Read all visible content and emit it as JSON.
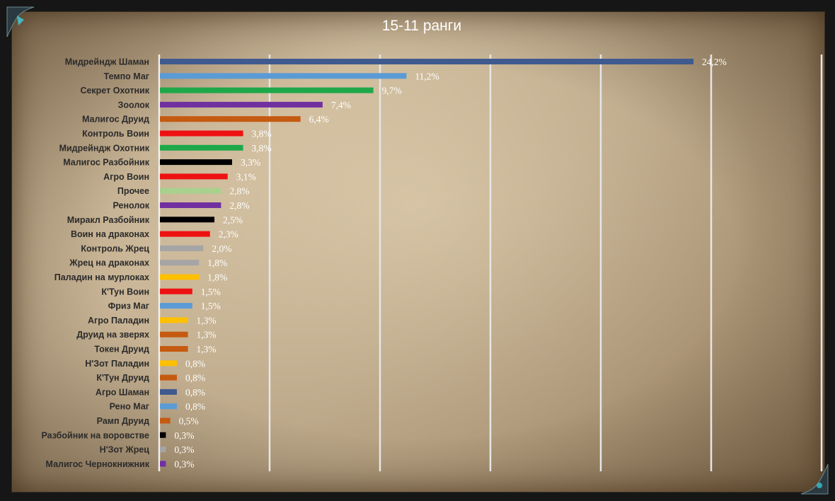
{
  "chart_data": {
    "type": "bar",
    "orientation": "horizontal",
    "title": "15-11 ранги",
    "categories": [
      "Мидрейндж Шаман",
      "Темпо Маг",
      "Секрет Охотник",
      "Зоолок",
      "Малигос Друид",
      "Контроль Воин",
      "Мидрейндж Охотник",
      "Малигос Разбойник",
      "Агро Воин",
      "Прочее",
      "Ренолок",
      "Миракл Разбойник",
      "Воин на драконах",
      "Контроль Жрец",
      "Жрец на драконах",
      "Паладин на мурлоках",
      "К'Тун Воин",
      "Фриз Маг",
      "Агро Паладин",
      "Друид на зверях",
      "Токен Друид",
      "Н'Зот Паладин",
      "К'Тун Друид",
      "Агро Шаман",
      "Рено Маг",
      "Рамп Друид",
      "Разбойник на воровстве",
      "Н'Зот Жрец",
      "Малигос Чернокнижник"
    ],
    "values": [
      24.2,
      11.2,
      9.7,
      7.4,
      6.4,
      3.8,
      3.8,
      3.3,
      3.1,
      2.8,
      2.8,
      2.5,
      2.3,
      2.0,
      1.8,
      1.8,
      1.5,
      1.5,
      1.3,
      1.3,
      1.3,
      0.8,
      0.8,
      0.8,
      0.8,
      0.5,
      0.3,
      0.3,
      0.3
    ],
    "value_labels": [
      "24,2%",
      "11,2%",
      "9,7%",
      "7,4%",
      "6,4%",
      "3,8%",
      "3,8%",
      "3,3%",
      "3,1%",
      "2,8%",
      "2,8%",
      "2,5%",
      "2,3%",
      "2,0%",
      "1,8%",
      "1,8%",
      "1,5%",
      "1,5%",
      "1,3%",
      "1,3%",
      "1,3%",
      "0,8%",
      "0,8%",
      "0,8%",
      "0,8%",
      "0,5%",
      "0,3%",
      "0,3%",
      "0,3%"
    ],
    "colors": [
      "#3f5a8f",
      "#5b9bd5",
      "#1ea84a",
      "#7030a0",
      "#c55a11",
      "#ee1111",
      "#1ea84a",
      "#000000",
      "#ee1111",
      "#a9d18e",
      "#7030a0",
      "#000000",
      "#ee1111",
      "#a5a5a5",
      "#a5a5a5",
      "#ffc000",
      "#ee1111",
      "#5b9bd5",
      "#ffc000",
      "#c55a11",
      "#c55a11",
      "#ffc000",
      "#c55a11",
      "#3f5a8f",
      "#5b9bd5",
      "#c55a11",
      "#000000",
      "#a5a5a5",
      "#7030a0"
    ],
    "xlim": [
      0,
      30
    ],
    "x_gridlines": [
      5,
      10,
      15,
      20,
      25,
      30
    ],
    "grid": true,
    "legend": "none"
  }
}
